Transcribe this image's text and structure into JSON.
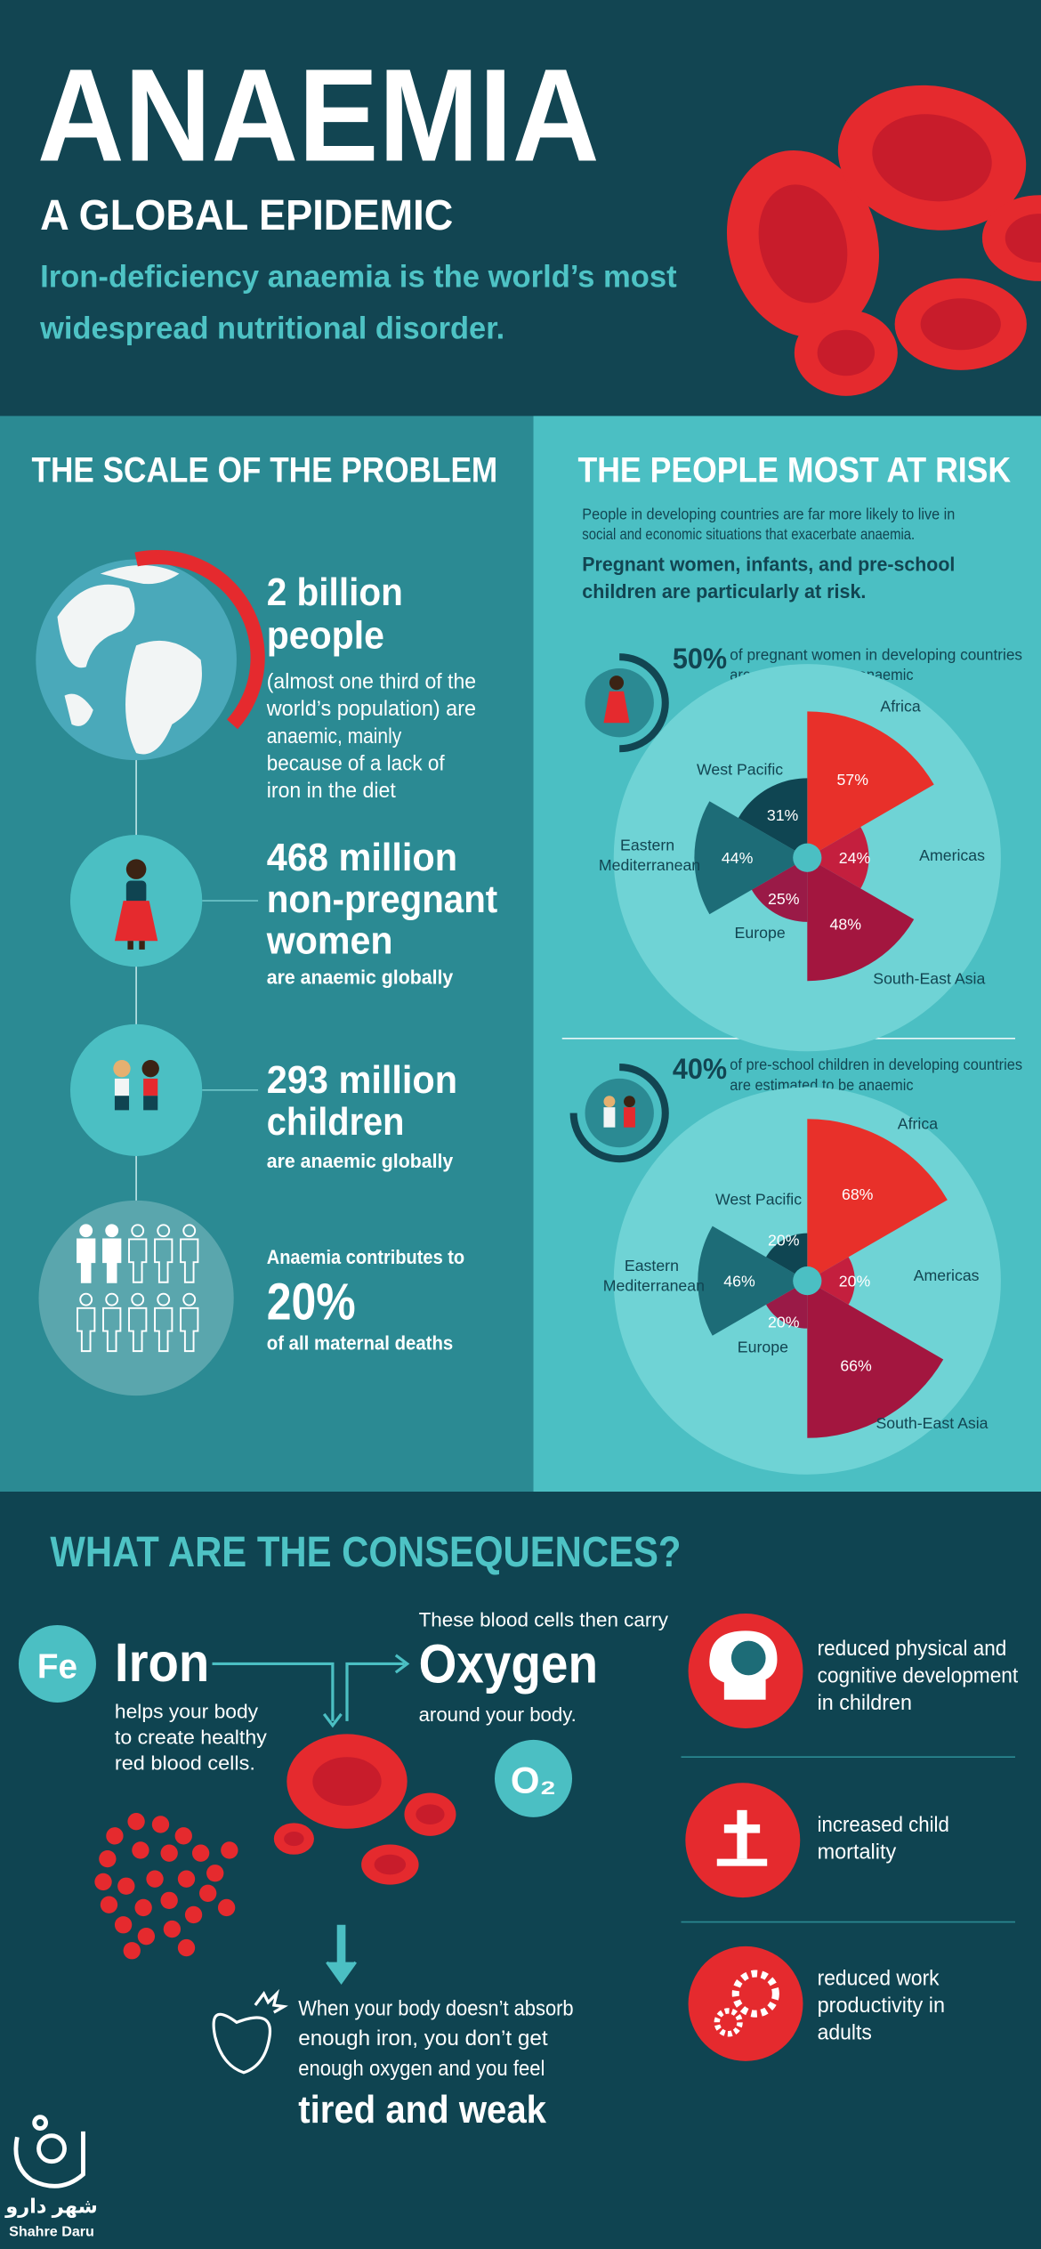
{
  "header": {
    "title": "ANAEMIA",
    "subtitle": "A GLOBAL EPIDEMIC",
    "tagline": [
      "Iron-deficiency anaemia is the world’s most",
      "widespread nutritional disorder."
    ]
  },
  "scale": {
    "heading": "THE SCALE OF THE PROBLEM",
    "items": [
      {
        "lines": [
          "2 billion",
          "people"
        ],
        "detail": [
          "(almost one third of the",
          "world’s population) are",
          "anaemic, mainly",
          "because of a lack of",
          "iron in the diet"
        ]
      },
      {
        "lines": [
          "468 million",
          "non-pregnant",
          "women"
        ],
        "detail": [
          "are anaemic globally"
        ]
      },
      {
        "lines": [
          "293 million",
          "children"
        ],
        "detail": [
          "are anaemic globally"
        ]
      },
      {
        "lead": "Anaemia contributes to",
        "lines": [
          "20%"
        ],
        "detail": [
          "of all maternal deaths"
        ]
      }
    ]
  },
  "risk": {
    "heading": "THE PEOPLE MOST AT RISK",
    "intro": [
      "People in developing countries are far more likely to live in",
      "social and economic situations that exacerbate anaemia."
    ],
    "emphasis": [
      "Pregnant women, infants, and pre-school",
      "children are particularly at risk."
    ]
  },
  "chart_data": [
    {
      "type": "polar",
      "headline": "50%",
      "description": [
        "of pregnant women in developing countries",
        "are estimated to be anaemic"
      ],
      "categories": [
        "Africa",
        "Americas",
        "South-East Asia",
        "Europe",
        "Eastern Mediterranean",
        "West Pacific"
      ],
      "values": [
        57,
        24,
        48,
        25,
        44,
        31
      ],
      "value_labels": [
        "57%",
        "24%",
        "48%",
        "25%",
        "44%",
        "31%"
      ],
      "colors": [
        "#e8302a",
        "#c41f3e",
        "#a3163f",
        "#9a1a47",
        "#1d6c77",
        "#0f4552"
      ]
    },
    {
      "type": "polar",
      "headline": "40%",
      "description": [
        "of pre-school children in developing countries",
        "are estimated to be anaemic"
      ],
      "categories": [
        "Africa",
        "Americas",
        "South-East Asia",
        "Europe",
        "Eastern Mediterranean",
        "West Pacific"
      ],
      "values": [
        68,
        20,
        66,
        20,
        46,
        20
      ],
      "value_labels": [
        "68%",
        "20%",
        "66%",
        "20%",
        "46%",
        "20%"
      ],
      "colors": [
        "#e8302a",
        "#c41f3e",
        "#a3163f",
        "#9a1a47",
        "#1d6c77",
        "#0f4552"
      ]
    }
  ],
  "consequences": {
    "heading": "WHAT ARE THE CONSEQUENCES?",
    "iron": {
      "symbol": "Fe",
      "word": "Iron",
      "lines": [
        "helps your body",
        "to create healthy",
        "red blood cells."
      ]
    },
    "oxygen": {
      "lead": "These blood cells then carry",
      "word": "Oxygen",
      "after": "around your body.",
      "symbol": "O₂"
    },
    "result": {
      "lines": [
        "When your body doesn’t absorb",
        "enough iron, you  don’t get",
        "enough oxygen and you feel"
      ],
      "emphasis": "tired and weak"
    },
    "effects": [
      [
        "reduced physical and",
        "cognitive development",
        "in children"
      ],
      [
        "increased child",
        "mortality"
      ],
      [
        "reduced work",
        "productivity in",
        "adults"
      ]
    ]
  },
  "logo": {
    "native": "شهر دارو",
    "latin": "Shahre Daru"
  }
}
